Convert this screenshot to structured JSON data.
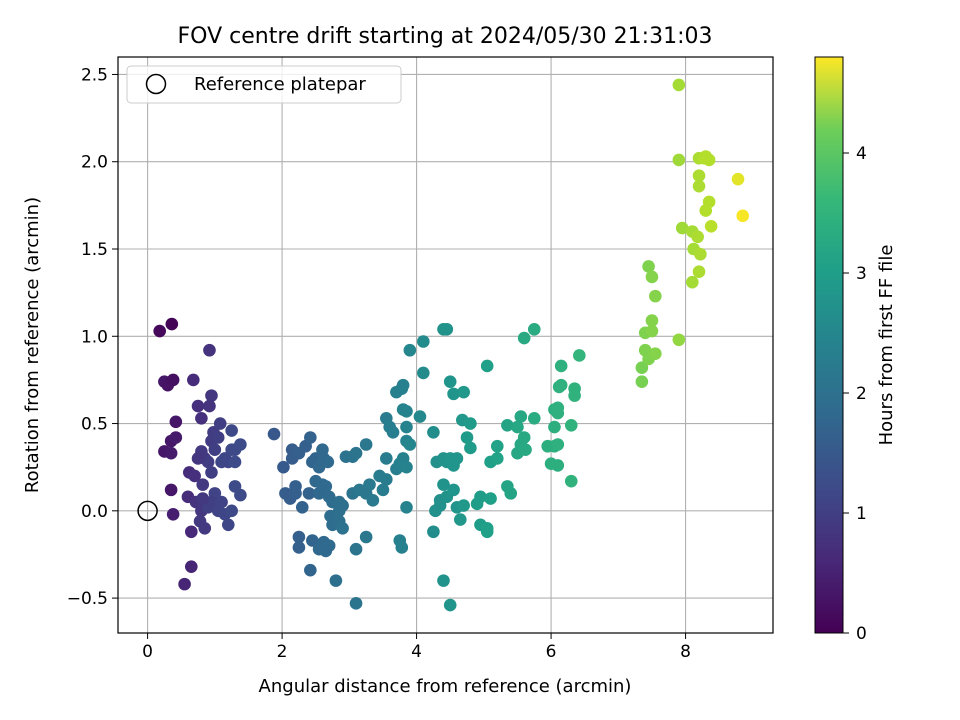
{
  "chart_data": {
    "type": "scatter",
    "title": "FOV centre drift starting at 2024/05/30 21:31:03",
    "xlabel": "Angular distance from reference (arcmin)",
    "ylabel": "Rotation from reference (arcmin)",
    "xlim": [
      -0.44,
      9.3
    ],
    "ylim": [
      -0.7,
      2.6
    ],
    "xticks": [
      0,
      2,
      4,
      6,
      8
    ],
    "xtick_labels": [
      "0",
      "2",
      "4",
      "6",
      "8"
    ],
    "yticks": [
      -0.5,
      0.0,
      0.5,
      1.0,
      1.5,
      2.0,
      2.5
    ],
    "ytick_labels": [
      "−0.5",
      "0.0",
      "0.5",
      "1.0",
      "1.5",
      "2.0",
      "2.5"
    ],
    "grid": true,
    "legend": {
      "placement": "upper-left",
      "entries": [
        "Reference platepar"
      ]
    },
    "reference_point": {
      "label": "Reference platepar",
      "x": 0,
      "y": 0,
      "style": "hollow black circle"
    },
    "colorbar": {
      "label": "Hours from first FF file",
      "colormap": "viridis",
      "range": [
        0,
        4.8
      ],
      "ticks": [
        0,
        1,
        2,
        3,
        4
      ],
      "tick_labels": [
        "0",
        "1",
        "2",
        "3",
        "4"
      ]
    },
    "points": [
      {
        "x": 0.18,
        "y": 1.03,
        "c": 0.1
      },
      {
        "x": 0.36,
        "y": 1.07,
        "c": 0.05
      },
      {
        "x": 0.25,
        "y": 0.74,
        "c": 0.3
      },
      {
        "x": 0.3,
        "y": 0.72,
        "c": 0.25
      },
      {
        "x": 0.38,
        "y": 0.75,
        "c": 0.2
      },
      {
        "x": 0.42,
        "y": 0.51,
        "c": 0.3
      },
      {
        "x": 0.35,
        "y": 0.4,
        "c": 0.3
      },
      {
        "x": 0.42,
        "y": 0.42,
        "c": 0.35
      },
      {
        "x": 0.25,
        "y": 0.34,
        "c": 0.3
      },
      {
        "x": 0.35,
        "y": 0.33,
        "c": 0.35
      },
      {
        "x": 0.35,
        "y": 0.12,
        "c": 0.3
      },
      {
        "x": 0.38,
        "y": -0.02,
        "c": 0.4
      },
      {
        "x": 0.55,
        "y": -0.42,
        "c": 0.5
      },
      {
        "x": 0.65,
        "y": -0.32,
        "c": 0.5
      },
      {
        "x": 0.65,
        "y": -0.12,
        "c": 0.55
      },
      {
        "x": 0.6,
        "y": 0.08,
        "c": 0.6
      },
      {
        "x": 0.62,
        "y": 0.22,
        "c": 0.6
      },
      {
        "x": 0.68,
        "y": 0.75,
        "c": 0.6
      },
      {
        "x": 0.75,
        "y": 0.6,
        "c": 0.65
      },
      {
        "x": 0.8,
        "y": 0.53,
        "c": 0.65
      },
      {
        "x": 0.92,
        "y": 0.92,
        "c": 0.7
      },
      {
        "x": 0.95,
        "y": 0.66,
        "c": 0.75
      },
      {
        "x": 0.92,
        "y": 0.6,
        "c": 0.7
      },
      {
        "x": 0.7,
        "y": 0.2,
        "c": 0.65
      },
      {
        "x": 0.72,
        "y": 0.05,
        "c": 0.7
      },
      {
        "x": 0.8,
        "y": 0.0,
        "c": 0.75
      },
      {
        "x": 0.78,
        "y": -0.06,
        "c": 0.8
      },
      {
        "x": 0.85,
        "y": -0.1,
        "c": 0.8
      },
      {
        "x": 0.82,
        "y": 0.15,
        "c": 0.8
      },
      {
        "x": 0.8,
        "y": 0.34,
        "c": 0.8
      },
      {
        "x": 0.85,
        "y": 0.3,
        "c": 0.8
      },
      {
        "x": 0.9,
        "y": 0.28,
        "c": 0.85
      },
      {
        "x": 0.95,
        "y": 0.4,
        "c": 0.85
      },
      {
        "x": 0.98,
        "y": 0.45,
        "c": 0.85
      },
      {
        "x": 1.0,
        "y": 0.35,
        "c": 0.9
      },
      {
        "x": 1.05,
        "y": 0.42,
        "c": 0.9
      },
      {
        "x": 1.08,
        "y": 0.5,
        "c": 0.9
      },
      {
        "x": 0.95,
        "y": 0.22,
        "c": 0.9
      },
      {
        "x": 1.0,
        "y": 0.1,
        "c": 0.95
      },
      {
        "x": 0.95,
        "y": 0.05,
        "c": 0.9
      },
      {
        "x": 0.9,
        "y": 0.02,
        "c": 0.9
      },
      {
        "x": 1.05,
        "y": 0.0,
        "c": 0.95
      },
      {
        "x": 1.1,
        "y": 0.05,
        "c": 0.95
      },
      {
        "x": 1.15,
        "y": -0.02,
        "c": 1.0
      },
      {
        "x": 1.2,
        "y": -0.08,
        "c": 1.0
      },
      {
        "x": 1.1,
        "y": 0.28,
        "c": 1.0
      },
      {
        "x": 1.15,
        "y": 0.3,
        "c": 1.0
      },
      {
        "x": 1.2,
        "y": 0.28,
        "c": 1.0
      },
      {
        "x": 1.25,
        "y": 0.35,
        "c": 1.05
      },
      {
        "x": 1.25,
        "y": 0.46,
        "c": 1.05
      },
      {
        "x": 1.3,
        "y": 0.35,
        "c": 1.05
      },
      {
        "x": 1.38,
        "y": 0.38,
        "c": 1.1
      },
      {
        "x": 1.3,
        "y": 0.28,
        "c": 1.1
      },
      {
        "x": 1.3,
        "y": 0.14,
        "c": 1.1
      },
      {
        "x": 1.38,
        "y": 0.09,
        "c": 1.1
      },
      {
        "x": 1.25,
        "y": 0.0,
        "c": 1.05
      },
      {
        "x": 0.82,
        "y": 0.07,
        "c": 0.8
      },
      {
        "x": 0.75,
        "y": 0.3,
        "c": 0.75
      },
      {
        "x": 1.88,
        "y": 0.44,
        "c": 1.3
      },
      {
        "x": 2.02,
        "y": 0.25,
        "c": 1.35
      },
      {
        "x": 2.15,
        "y": 0.3,
        "c": 1.4
      },
      {
        "x": 2.15,
        "y": 0.35,
        "c": 1.4
      },
      {
        "x": 2.25,
        "y": 0.33,
        "c": 1.45
      },
      {
        "x": 2.35,
        "y": 0.37,
        "c": 1.45
      },
      {
        "x": 2.42,
        "y": 0.42,
        "c": 1.5
      },
      {
        "x": 2.05,
        "y": 0.1,
        "c": 1.4
      },
      {
        "x": 2.12,
        "y": 0.07,
        "c": 1.4
      },
      {
        "x": 2.2,
        "y": 0.14,
        "c": 1.45
      },
      {
        "x": 2.2,
        "y": 0.1,
        "c": 1.45
      },
      {
        "x": 2.3,
        "y": 0.02,
        "c": 1.5
      },
      {
        "x": 2.4,
        "y": 0.1,
        "c": 1.5
      },
      {
        "x": 2.45,
        "y": 0.28,
        "c": 1.55
      },
      {
        "x": 2.5,
        "y": 0.3,
        "c": 1.55
      },
      {
        "x": 2.55,
        "y": 0.25,
        "c": 1.6
      },
      {
        "x": 2.6,
        "y": 0.35,
        "c": 1.6
      },
      {
        "x": 2.62,
        "y": 0.3,
        "c": 1.6
      },
      {
        "x": 2.68,
        "y": 0.28,
        "c": 1.65
      },
      {
        "x": 2.5,
        "y": 0.17,
        "c": 1.6
      },
      {
        "x": 2.55,
        "y": 0.1,
        "c": 1.6
      },
      {
        "x": 2.6,
        "y": 0.15,
        "c": 1.65
      },
      {
        "x": 2.65,
        "y": 0.14,
        "c": 1.65
      },
      {
        "x": 2.7,
        "y": 0.08,
        "c": 1.65
      },
      {
        "x": 2.75,
        "y": 0.05,
        "c": 1.7
      },
      {
        "x": 2.72,
        "y": -0.03,
        "c": 1.7
      },
      {
        "x": 2.75,
        "y": -0.08,
        "c": 1.7
      },
      {
        "x": 2.8,
        "y": -0.05,
        "c": 1.7
      },
      {
        "x": 2.85,
        "y": 0.0,
        "c": 1.75
      },
      {
        "x": 2.9,
        "y": 0.03,
        "c": 1.75
      },
      {
        "x": 2.85,
        "y": 0.05,
        "c": 1.75
      },
      {
        "x": 2.45,
        "y": -0.17,
        "c": 1.55
      },
      {
        "x": 2.55,
        "y": -0.22,
        "c": 1.6
      },
      {
        "x": 2.62,
        "y": -0.18,
        "c": 1.6
      },
      {
        "x": 2.65,
        "y": -0.23,
        "c": 1.65
      },
      {
        "x": 2.7,
        "y": -0.2,
        "c": 1.65
      },
      {
        "x": 2.25,
        "y": -0.15,
        "c": 1.45
      },
      {
        "x": 2.25,
        "y": -0.21,
        "c": 1.45
      },
      {
        "x": 2.42,
        "y": -0.34,
        "c": 1.55
      },
      {
        "x": 2.8,
        "y": -0.4,
        "c": 1.75
      },
      {
        "x": 2.85,
        "y": -0.06,
        "c": 1.75
      },
      {
        "x": 2.9,
        "y": -0.1,
        "c": 1.8
      },
      {
        "x": 2.95,
        "y": 0.31,
        "c": 1.8
      },
      {
        "x": 3.05,
        "y": 0.31,
        "c": 1.85
      },
      {
        "x": 3.1,
        "y": 0.33,
        "c": 1.85
      },
      {
        "x": 3.05,
        "y": 0.1,
        "c": 1.85
      },
      {
        "x": 3.15,
        "y": 0.12,
        "c": 1.9
      },
      {
        "x": 3.25,
        "y": 0.1,
        "c": 1.9
      },
      {
        "x": 3.25,
        "y": 0.38,
        "c": 1.9
      },
      {
        "x": 3.3,
        "y": 0.15,
        "c": 1.95
      },
      {
        "x": 3.35,
        "y": 0.06,
        "c": 1.95
      },
      {
        "x": 3.25,
        "y": -0.15,
        "c": 1.9
      },
      {
        "x": 3.1,
        "y": -0.22,
        "c": 1.85
      },
      {
        "x": 3.1,
        "y": -0.53,
        "c": 1.85
      },
      {
        "x": 3.45,
        "y": 0.2,
        "c": 2.0
      },
      {
        "x": 3.5,
        "y": 0.12,
        "c": 2.0
      },
      {
        "x": 3.55,
        "y": 0.18,
        "c": 2.0
      },
      {
        "x": 3.55,
        "y": 0.3,
        "c": 2.0
      },
      {
        "x": 3.55,
        "y": 0.53,
        "c": 2.0
      },
      {
        "x": 3.6,
        "y": 0.48,
        "c": 2.05
      },
      {
        "x": 3.7,
        "y": 0.24,
        "c": 2.05
      },
      {
        "x": 3.75,
        "y": 0.27,
        "c": 2.1
      },
      {
        "x": 3.8,
        "y": 0.3,
        "c": 2.1
      },
      {
        "x": 3.75,
        "y": -0.17,
        "c": 2.1
      },
      {
        "x": 3.78,
        "y": -0.21,
        "c": 2.1
      },
      {
        "x": 3.65,
        "y": 0.45,
        "c": 2.05
      },
      {
        "x": 3.7,
        "y": 0.68,
        "c": 2.1
      },
      {
        "x": 3.78,
        "y": 0.7,
        "c": 2.1
      },
      {
        "x": 3.8,
        "y": 0.72,
        "c": 2.1
      },
      {
        "x": 3.8,
        "y": 0.58,
        "c": 2.15
      },
      {
        "x": 3.85,
        "y": 0.57,
        "c": 2.15
      },
      {
        "x": 3.85,
        "y": 0.48,
        "c": 2.15
      },
      {
        "x": 3.85,
        "y": 0.4,
        "c": 2.15
      },
      {
        "x": 3.9,
        "y": 0.38,
        "c": 2.2
      },
      {
        "x": 3.85,
        "y": 0.25,
        "c": 2.15
      },
      {
        "x": 3.85,
        "y": 0.02,
        "c": 2.15
      },
      {
        "x": 3.9,
        "y": 0.92,
        "c": 2.2
      },
      {
        "x": 4.05,
        "y": 0.54,
        "c": 2.25
      },
      {
        "x": 4.1,
        "y": 0.97,
        "c": 2.3
      },
      {
        "x": 4.1,
        "y": 0.79,
        "c": 2.3
      },
      {
        "x": 4.25,
        "y": 0.45,
        "c": 2.35
      },
      {
        "x": 4.3,
        "y": 0.28,
        "c": 2.4
      },
      {
        "x": 4.35,
        "y": 0.03,
        "c": 2.4
      },
      {
        "x": 4.28,
        "y": 0.0,
        "c": 2.4
      },
      {
        "x": 4.25,
        "y": -0.12,
        "c": 2.35
      },
      {
        "x": 4.35,
        "y": 0.06,
        "c": 2.4
      },
      {
        "x": 4.4,
        "y": 0.3,
        "c": 2.45
      },
      {
        "x": 4.45,
        "y": 0.28,
        "c": 2.45
      },
      {
        "x": 4.4,
        "y": 0.15,
        "c": 2.45
      },
      {
        "x": 4.45,
        "y": 0.08,
        "c": 2.45
      },
      {
        "x": 4.5,
        "y": 0.3,
        "c": 2.5
      },
      {
        "x": 4.55,
        "y": 0.26,
        "c": 2.5
      },
      {
        "x": 4.6,
        "y": 0.3,
        "c": 2.5
      },
      {
        "x": 4.55,
        "y": 0.12,
        "c": 2.5
      },
      {
        "x": 4.6,
        "y": 0.02,
        "c": 2.5
      },
      {
        "x": 4.65,
        "y": -0.05,
        "c": 2.55
      },
      {
        "x": 4.7,
        "y": 0.03,
        "c": 2.55
      },
      {
        "x": 4.4,
        "y": -0.4,
        "c": 2.45
      },
      {
        "x": 4.5,
        "y": -0.54,
        "c": 2.5
      },
      {
        "x": 4.4,
        "y": 1.04,
        "c": 2.45
      },
      {
        "x": 4.45,
        "y": 1.04,
        "c": 2.45
      },
      {
        "x": 4.5,
        "y": 0.74,
        "c": 2.5
      },
      {
        "x": 4.55,
        "y": 0.67,
        "c": 2.5
      },
      {
        "x": 4.7,
        "y": 0.68,
        "c": 2.55
      },
      {
        "x": 4.68,
        "y": 0.52,
        "c": 2.55
      },
      {
        "x": 4.75,
        "y": 0.42,
        "c": 2.6
      },
      {
        "x": 4.8,
        "y": 0.5,
        "c": 2.6
      },
      {
        "x": 4.8,
        "y": 0.36,
        "c": 2.6
      },
      {
        "x": 4.9,
        "y": 0.04,
        "c": 2.65
      },
      {
        "x": 4.95,
        "y": 0.08,
        "c": 2.65
      },
      {
        "x": 4.95,
        "y": -0.08,
        "c": 2.65
      },
      {
        "x": 5.05,
        "y": -0.1,
        "c": 2.7
      },
      {
        "x": 5.05,
        "y": -0.12,
        "c": 2.7
      },
      {
        "x": 5.05,
        "y": 0.83,
        "c": 2.7
      },
      {
        "x": 5.1,
        "y": 0.28,
        "c": 2.7
      },
      {
        "x": 5.1,
        "y": 0.07,
        "c": 2.7
      },
      {
        "x": 5.2,
        "y": 0.37,
        "c": 2.75
      },
      {
        "x": 5.2,
        "y": 0.3,
        "c": 2.75
      },
      {
        "x": 5.35,
        "y": 0.14,
        "c": 2.8
      },
      {
        "x": 5.4,
        "y": 0.1,
        "c": 2.8
      },
      {
        "x": 5.35,
        "y": 0.49,
        "c": 2.8
      },
      {
        "x": 5.5,
        "y": 0.48,
        "c": 2.85
      },
      {
        "x": 5.55,
        "y": 0.54,
        "c": 2.85
      },
      {
        "x": 5.5,
        "y": 0.33,
        "c": 2.85
      },
      {
        "x": 5.55,
        "y": 0.38,
        "c": 2.85
      },
      {
        "x": 5.6,
        "y": 0.42,
        "c": 2.9
      },
      {
        "x": 5.62,
        "y": 0.35,
        "c": 2.9
      },
      {
        "x": 5.6,
        "y": 0.99,
        "c": 2.9
      },
      {
        "x": 5.75,
        "y": 1.04,
        "c": 2.95
      },
      {
        "x": 5.75,
        "y": 0.53,
        "c": 2.95
      },
      {
        "x": 5.95,
        "y": 0.37,
        "c": 3.0
      },
      {
        "x": 6.0,
        "y": 0.27,
        "c": 3.0
      },
      {
        "x": 6.05,
        "y": 0.37,
        "c": 3.0
      },
      {
        "x": 6.05,
        "y": 0.58,
        "c": 3.0
      },
      {
        "x": 6.1,
        "y": 0.59,
        "c": 3.05
      },
      {
        "x": 6.1,
        "y": 0.56,
        "c": 3.05
      },
      {
        "x": 6.05,
        "y": 0.48,
        "c": 3.0
      },
      {
        "x": 6.1,
        "y": 0.38,
        "c": 3.05
      },
      {
        "x": 6.15,
        "y": 0.72,
        "c": 3.05
      },
      {
        "x": 6.15,
        "y": 0.83,
        "c": 3.05
      },
      {
        "x": 6.12,
        "y": 0.71,
        "c": 3.05
      },
      {
        "x": 6.3,
        "y": 0.49,
        "c": 3.1
      },
      {
        "x": 6.3,
        "y": 0.17,
        "c": 3.1
      },
      {
        "x": 6.35,
        "y": 0.7,
        "c": 3.1
      },
      {
        "x": 6.35,
        "y": 0.66,
        "c": 3.1
      },
      {
        "x": 6.42,
        "y": 0.89,
        "c": 3.15
      },
      {
        "x": 6.1,
        "y": 0.26,
        "c": 3.0
      },
      {
        "x": 7.35,
        "y": 0.74,
        "c": 3.8
      },
      {
        "x": 7.35,
        "y": 0.82,
        "c": 3.8
      },
      {
        "x": 7.4,
        "y": 0.92,
        "c": 3.85
      },
      {
        "x": 7.4,
        "y": 1.02,
        "c": 3.85
      },
      {
        "x": 7.45,
        "y": 0.87,
        "c": 3.85
      },
      {
        "x": 7.45,
        "y": 1.4,
        "c": 3.85
      },
      {
        "x": 7.5,
        "y": 1.34,
        "c": 3.9
      },
      {
        "x": 7.5,
        "y": 1.09,
        "c": 3.9
      },
      {
        "x": 7.5,
        "y": 1.03,
        "c": 3.9
      },
      {
        "x": 7.55,
        "y": 1.23,
        "c": 3.9
      },
      {
        "x": 7.55,
        "y": 0.9,
        "c": 3.9
      },
      {
        "x": 7.9,
        "y": 0.98,
        "c": 4.0
      },
      {
        "x": 7.9,
        "y": 2.44,
        "c": 4.15
      },
      {
        "x": 7.9,
        "y": 2.01,
        "c": 4.1
      },
      {
        "x": 7.95,
        "y": 1.62,
        "c": 4.1
      },
      {
        "x": 8.1,
        "y": 1.6,
        "c": 4.15
      },
      {
        "x": 8.1,
        "y": 1.31,
        "c": 4.15
      },
      {
        "x": 8.12,
        "y": 1.5,
        "c": 4.15
      },
      {
        "x": 8.18,
        "y": 1.57,
        "c": 4.2
      },
      {
        "x": 8.2,
        "y": 1.37,
        "c": 4.2
      },
      {
        "x": 8.22,
        "y": 1.47,
        "c": 4.2
      },
      {
        "x": 8.2,
        "y": 1.92,
        "c": 4.2
      },
      {
        "x": 8.2,
        "y": 1.86,
        "c": 4.2
      },
      {
        "x": 8.2,
        "y": 2.02,
        "c": 4.2
      },
      {
        "x": 8.28,
        "y": 2.02,
        "c": 4.25
      },
      {
        "x": 8.3,
        "y": 2.03,
        "c": 4.25
      },
      {
        "x": 8.35,
        "y": 2.01,
        "c": 4.25
      },
      {
        "x": 8.3,
        "y": 1.72,
        "c": 4.25
      },
      {
        "x": 8.35,
        "y": 1.77,
        "c": 4.25
      },
      {
        "x": 8.38,
        "y": 1.63,
        "c": 4.3
      },
      {
        "x": 8.78,
        "y": 1.9,
        "c": 4.6
      },
      {
        "x": 8.85,
        "y": 1.69,
        "c": 4.75
      }
    ]
  }
}
